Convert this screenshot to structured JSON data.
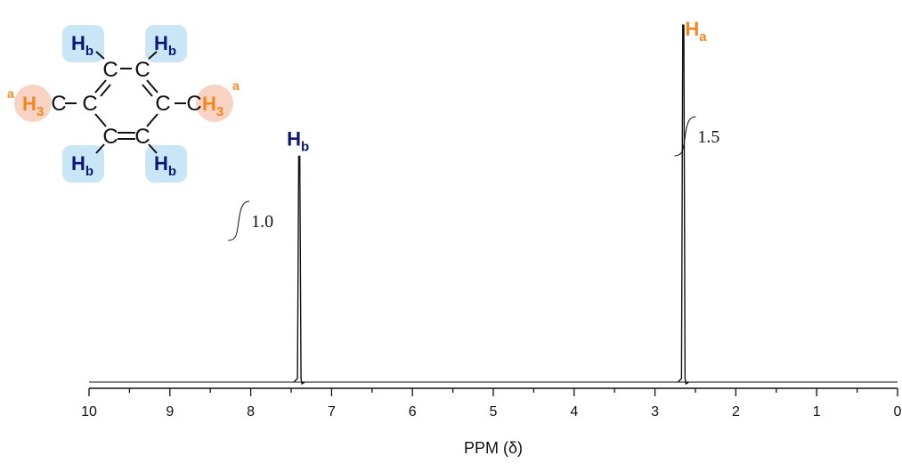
{
  "chart_data": {
    "type": "line",
    "title": "",
    "xlabel": "PPM (δ)",
    "ylabel": "",
    "xlim": [
      10,
      0
    ],
    "x_reversed": true,
    "grid": false,
    "x_ticks": [
      10,
      9,
      8,
      7,
      6,
      5,
      4,
      3,
      2,
      1,
      0
    ],
    "x_tick_labels": [
      "10",
      "9",
      "8",
      "7",
      "6",
      "5",
      "4",
      "3",
      "2",
      "1",
      "0"
    ],
    "peaks": [
      {
        "ppm": 7.4,
        "relative_height": 0.62,
        "label": "H",
        "label_sub": "b",
        "integral": "1.0"
      },
      {
        "ppm": 2.65,
        "relative_height": 0.98,
        "label": "H",
        "label_sub": "a",
        "integral": "1.5"
      }
    ]
  },
  "structure": {
    "carbon": "C",
    "hydrogen": "H",
    "methyl_hydrogens": "H",
    "methyl_sub": "3",
    "methyl_tag": "a",
    "aromatic_sub": "b"
  },
  "colors": {
    "orange": "#f5861f",
    "navy": "#0d1673",
    "orange_bg": "#f8d2c3",
    "blue_bg": "#c9e6f6",
    "line": "#111111"
  }
}
